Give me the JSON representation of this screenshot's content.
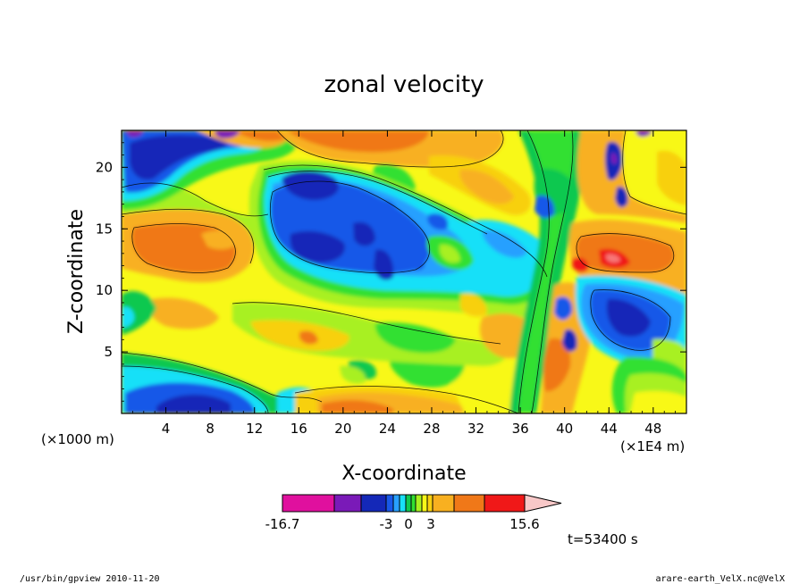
{
  "chart_data": {
    "type": "heatmap",
    "title": "zonal velocity",
    "xlabel": "X-coordinate",
    "ylabel": "Z-coordinate",
    "x_unit": "(×1E4 m)",
    "z_unit": "(×1000 m)",
    "xlim": [
      0,
      51
    ],
    "ylim": [
      0,
      23
    ],
    "x_ticks": [
      "4",
      "8",
      "12",
      "16",
      "20",
      "24",
      "28",
      "32",
      "36",
      "40",
      "44",
      "48"
    ],
    "y_ticks": [
      "5",
      "10",
      "15",
      "20"
    ],
    "colorbar": {
      "labels": [
        "-16.7",
        "-3",
        "0",
        "3",
        "15.6"
      ],
      "colors": [
        "#e0109e",
        "#7a1ab8",
        "#1428b8",
        "#1858e8",
        "#28a0ff",
        "#18e0f8",
        "#10c850",
        "#30e030",
        "#a8f020",
        "#f8f818",
        "#f8d010",
        "#f8b020",
        "#f07818",
        "#f01818",
        "#f87878",
        "#f8c8c8"
      ]
    },
    "time_label": "t=53400 s",
    "footer_left": "/usr/bin/gpview   2010-11-20",
    "footer_right": "arare-earth_VelX.nc@VelX"
  }
}
